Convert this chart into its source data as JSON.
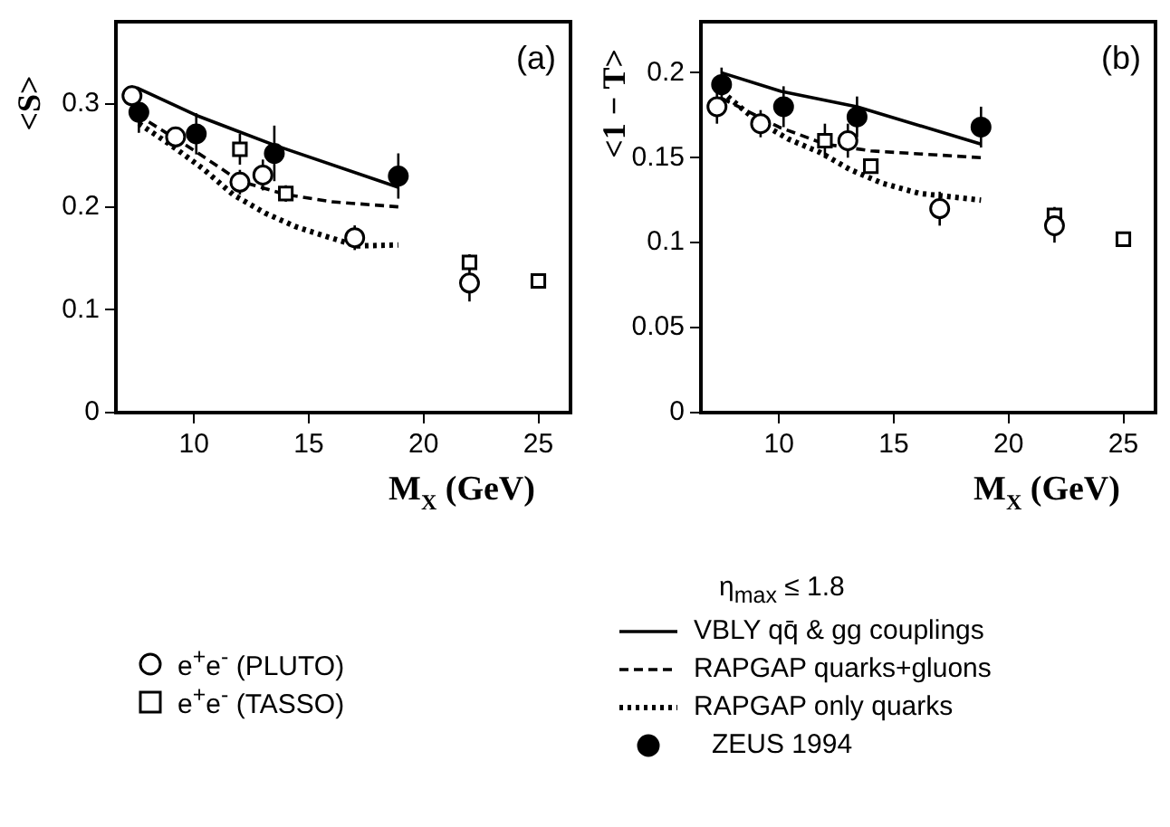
{
  "chart_data": [
    {
      "type": "scatter",
      "ylabel": "<S>",
      "xlabel": "M$_{X}$ (GeV)",
      "annotations": [
        "(a)"
      ],
      "xlim": [
        6.6,
        26.4
      ],
      "xticks": [
        10,
        15,
        20,
        25
      ],
      "ylim": [
        0,
        0.38
      ],
      "yticks": [
        0,
        0.1,
        0.2,
        0.3
      ],
      "legend": "bottom",
      "series": [
        {
          "name": "e$^{+}$e$^{-}$ (PLUTO)",
          "marker": "circle",
          "color": "#ffffff",
          "x": [
            7.3,
            9.2,
            12,
            13,
            17,
            22
          ],
          "values": [
            0.308,
            0.268,
            0.224,
            0.231,
            0.17,
            0.126
          ],
          "errors": [
            0.01,
            0.01,
            0.012,
            0.015,
            0.012,
            0.018
          ]
        },
        {
          "name": "e$^{+}$e$^{-}$ (TASSO)",
          "marker": "square",
          "color": "#ffffff",
          "x": [
            12,
            14,
            22,
            25
          ],
          "values": [
            0.256,
            0.213,
            0.146,
            0.128
          ],
          "errors": [
            0.015,
            0.008,
            0.008,
            0.005
          ]
        },
        {
          "type": "line",
          "line_style": "solid",
          "marker": "none",
          "color": "#000000",
          "x": [
            7.5,
            10.1,
            13.5,
            18.9
          ],
          "values": [
            0.316,
            0.289,
            0.26,
            0.219
          ]
        },
        {
          "type": "line",
          "line_style": "dashed",
          "marker": "none",
          "color": "#000000",
          "x": [
            7.5,
            10,
            12,
            14,
            16,
            18.9
          ],
          "values": [
            0.29,
            0.255,
            0.225,
            0.212,
            0.205,
            0.2
          ]
        },
        {
          "type": "line",
          "line_style": "dotted",
          "marker": "none",
          "color": "#000000",
          "x": [
            7.6,
            9,
            10.4,
            11.7,
            13.1,
            14.4,
            15.8,
            17.1,
            18.9
          ],
          "values": [
            0.281,
            0.26,
            0.237,
            0.212,
            0.194,
            0.181,
            0.171,
            0.162,
            0.163
          ]
        },
        {
          "marker": "circle",
          "color": "#000000",
          "x": [
            7.6,
            10.1,
            13.5,
            18.9
          ],
          "values": [
            0.292,
            0.271,
            0.252,
            0.23
          ],
          "errors": [
            0.02,
            0.02,
            0.027,
            0.022
          ]
        }
      ]
    },
    {
      "type": "scatter",
      "ylabel": "<1 − T>",
      "xlabel": "M$_{X}$ (GeV)",
      "annotations": [
        "(b)"
      ],
      "xlim": [
        6.6,
        26.4
      ],
      "xticks": [
        10,
        15,
        20,
        25
      ],
      "ylim": [
        0,
        0.23
      ],
      "yticks": [
        0,
        0.05,
        0.1,
        0.15,
        0.2
      ],
      "legend": "bottom",
      "legend_title": "η$_{max}$ ≤ 1.8",
      "series": [
        {
          "marker": "circle",
          "color": "#ffffff",
          "x": [
            7.3,
            9.2,
            13,
            17,
            22
          ],
          "values": [
            0.18,
            0.17,
            0.16,
            0.12,
            0.11
          ],
          "errors": [
            0.01,
            0.008,
            0.01,
            0.01,
            0.01
          ]
        },
        {
          "marker": "square",
          "color": "#ffffff",
          "x": [
            12,
            14,
            22,
            25
          ],
          "values": [
            0.16,
            0.145,
            0.116,
            0.102
          ],
          "errors": [
            0.01,
            0.004,
            0.005,
            0.003
          ]
        },
        {
          "name": "VBLY qq̄ & gg couplings",
          "type": "line",
          "line_style": "solid",
          "marker": "none",
          "color": "#000000",
          "x": [
            7.5,
            10.1,
            13.4,
            18.8
          ],
          "values": [
            0.2,
            0.189,
            0.18,
            0.158
          ]
        },
        {
          "name": "RAPGAP quarks+gluons",
          "type": "line",
          "line_style": "dashed",
          "marker": "none",
          "color": "#000000",
          "x": [
            7.5,
            10,
            12,
            14,
            18.8
          ],
          "values": [
            0.185,
            0.168,
            0.158,
            0.154,
            0.15
          ]
        },
        {
          "name": "RAPGAP only quarks",
          "type": "line",
          "line_style": "dotted",
          "marker": "none",
          "color": "#000000",
          "x": [
            7.5,
            9,
            10.4,
            11.8,
            13.1,
            14.5,
            16.1,
            18.8
          ],
          "values": [
            0.189,
            0.172,
            0.161,
            0.153,
            0.143,
            0.135,
            0.129,
            0.125
          ]
        },
        {
          "name": "ZEUS 1994",
          "marker": "circle",
          "color": "#000000",
          "x": [
            7.5,
            10.2,
            13.4,
            18.8
          ],
          "values": [
            0.193,
            0.18,
            0.174,
            0.168
          ],
          "errors": [
            0.01,
            0.012,
            0.012,
            0.012
          ]
        }
      ]
    }
  ]
}
